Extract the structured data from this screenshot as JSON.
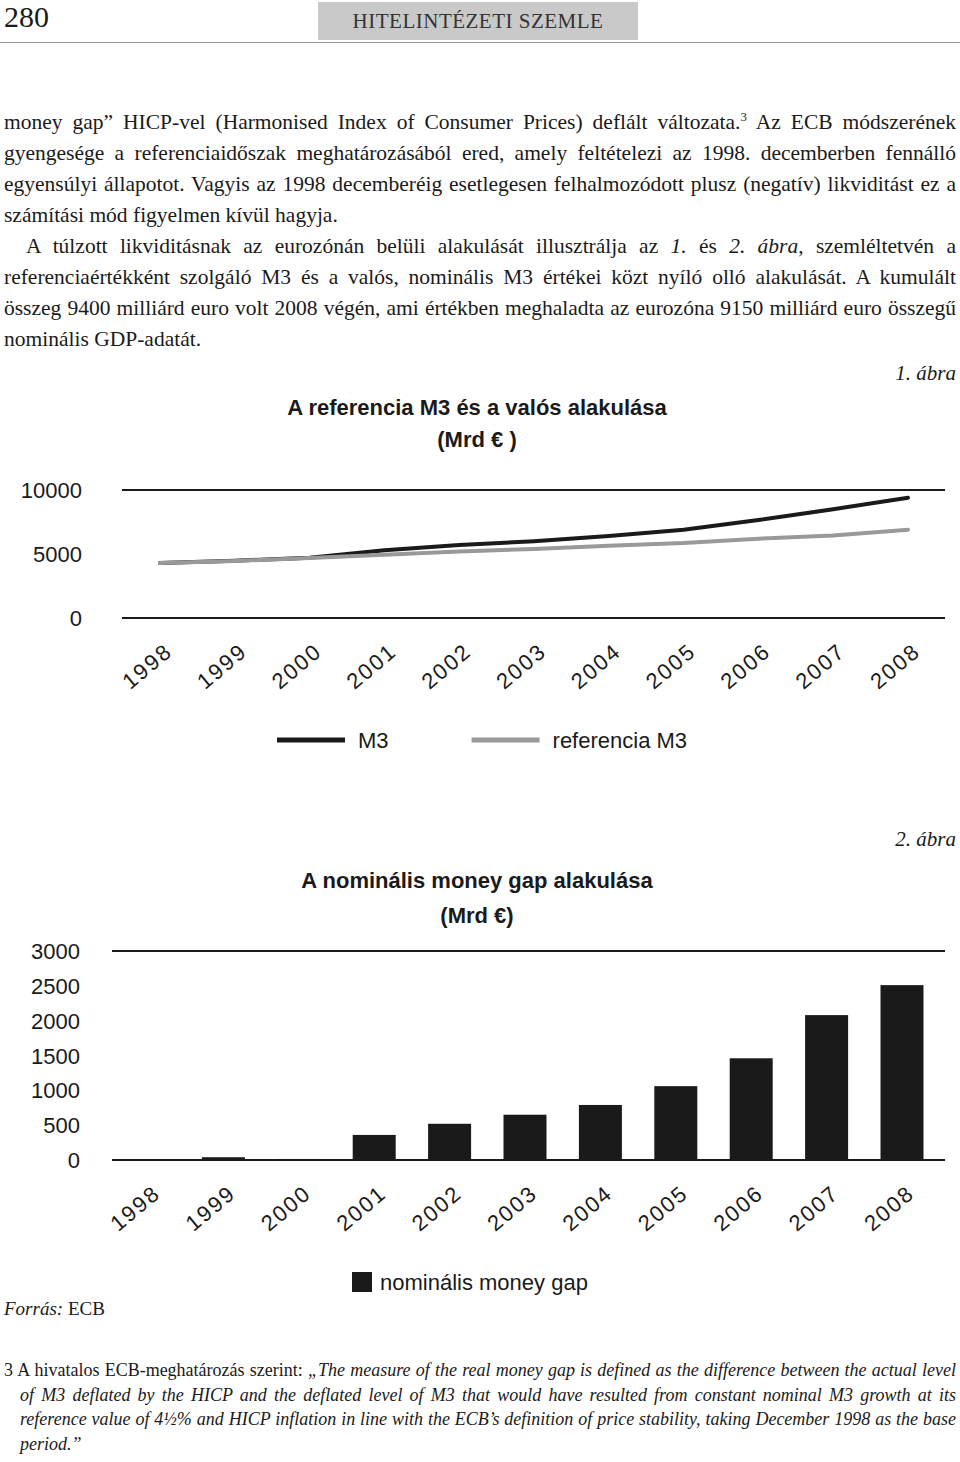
{
  "page": {
    "header": {
      "page_number": "280",
      "journal": "HITELINTÉZETI SZEMLE"
    },
    "paragraphs": [
      {
        "runs": [
          {
            "text": "money gap” HICP-vel (Harmonised Index of Consumer Prices) deflált változata.",
            "style": "normal"
          },
          {
            "text": "3",
            "style": "sup"
          },
          {
            "text": " Az ECB módszerének gyengesége a referenciaidőszak meghatározásából ered, amely feltételezi az 1998. decemberben fennálló egyensúlyi állapotot. Vagyis az 1998 decemberéig esetlegesen felhalmozódott plusz (negatív) likviditást ez a számítási mód figyelmen kívül hagyja.",
            "style": "normal"
          }
        ]
      },
      {
        "runs": [
          {
            "text": "A túlzott likviditásnak az eurozónán belüli alakulását illusztrálja az ",
            "style": "normal"
          },
          {
            "text": "1.",
            "style": "italic"
          },
          {
            "text": " és ",
            "style": "normal"
          },
          {
            "text": "2. ábra",
            "style": "italic"
          },
          {
            "text": ", szemléltetvén a referenciaértékként szolgáló M3 és a valós, nominális M3 értékei közt nyíló olló alakulását. A kumulált összeg 9400 milliárd euro volt 2008 végén, ami értékben meghaladta az eurozóna 9150 milliárd euro összegű nominális GDP-adatát.",
            "style": "normal"
          }
        ]
      }
    ],
    "figure_labels": [
      "1. ábra",
      "2. ábra"
    ],
    "source": {
      "label": "Forrás:",
      "text": " ECB"
    },
    "footnote": {
      "runs": [
        {
          "text": "3 A hivatalos ECB-meghatározás szerint: ",
          "style": "normal"
        },
        {
          "text": "„The measure of the real money gap is defined as the difference between the actual level of M3 deflated by the HICP and the deflated level of M3 that would have resulted from constant nominal M3 growth at its reference value of 4½% and HICP inflation in line with the ECB’s definition of price stability, taking December 1998 as the base period.”",
          "style": "italic"
        }
      ]
    }
  },
  "chart_data": [
    {
      "type": "line",
      "title": "A referencia M3 és a valós alakulása",
      "subtitle": "(Mrd € )",
      "categories": [
        "1998",
        "1999",
        "2000",
        "2001",
        "2002",
        "2003",
        "2004",
        "2005",
        "2006",
        "2007",
        "2008"
      ],
      "series": [
        {
          "name": "M3",
          "color": "#1a1a1a",
          "values": [
            4300,
            4480,
            4700,
            5300,
            5700,
            6000,
            6400,
            6900,
            7650,
            8500,
            9400
          ]
        },
        {
          "name": "referencia M3",
          "color": "#999999",
          "values": [
            4300,
            4460,
            4690,
            4950,
            5200,
            5400,
            5650,
            5850,
            6200,
            6450,
            6900
          ]
        }
      ],
      "ylim": [
        0,
        10000
      ],
      "yticks": [
        0,
        5000,
        10000
      ],
      "grid": false,
      "legend": "bottom"
    },
    {
      "type": "bar",
      "title": "A nominális money gap alakulása",
      "subtitle": "(Mrd €)",
      "categories": [
        "1998",
        "1999",
        "2000",
        "2001",
        "2002",
        "2003",
        "2004",
        "2005",
        "2006",
        "2007",
        "2008"
      ],
      "series": [
        {
          "name": "nominális money gap",
          "color": "#1a1a1a",
          "values": [
            0,
            40,
            15,
            360,
            520,
            650,
            790,
            1060,
            1460,
            2080,
            2510
          ]
        }
      ],
      "ylim": [
        0,
        3000
      ],
      "yticks": [
        0,
        500,
        1000,
        1500,
        2000,
        2500,
        3000
      ],
      "grid": false,
      "legend": "bottom"
    }
  ]
}
